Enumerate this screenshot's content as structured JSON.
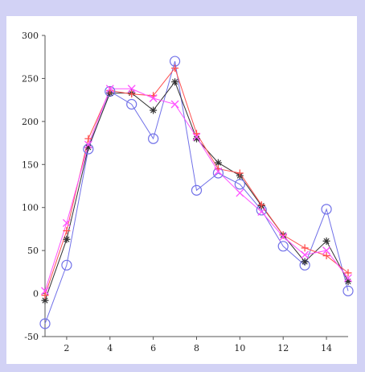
{
  "chart_data": {
    "type": "line",
    "x": [
      1,
      2,
      3,
      4,
      5,
      6,
      7,
      8,
      9,
      10,
      11,
      12,
      13,
      14,
      15
    ],
    "xlim": [
      1,
      15
    ],
    "ylim": [
      -50,
      300
    ],
    "x_ticks": [
      2,
      4,
      6,
      8,
      10,
      12,
      14
    ],
    "y_ticks": [
      -50,
      0,
      50,
      100,
      150,
      200,
      250,
      300
    ],
    "grid": false,
    "legend": "none",
    "series": [
      {
        "color": "#7070e8",
        "marker": "circle",
        "values": [
          -35,
          33,
          168,
          235,
          220,
          180,
          270,
          120,
          140,
          127,
          97,
          55,
          33,
          98,
          3
        ]
      },
      {
        "color": "#333333",
        "marker": "star",
        "values": [
          -8,
          63,
          170,
          233,
          233,
          213,
          246,
          180,
          152,
          137,
          102,
          68,
          37,
          61,
          14
        ]
      },
      {
        "color": "#ff5050",
        "marker": "plus",
        "values": [
          -2,
          73,
          180,
          236,
          232,
          230,
          262,
          186,
          145,
          140,
          103,
          68,
          53,
          44,
          24
        ]
      },
      {
        "color": "#ff50ff",
        "marker": "x",
        "values": [
          3,
          82,
          173,
          238,
          238,
          227,
          220,
          182,
          142,
          117,
          95,
          66,
          45,
          50,
          18
        ]
      }
    ]
  }
}
